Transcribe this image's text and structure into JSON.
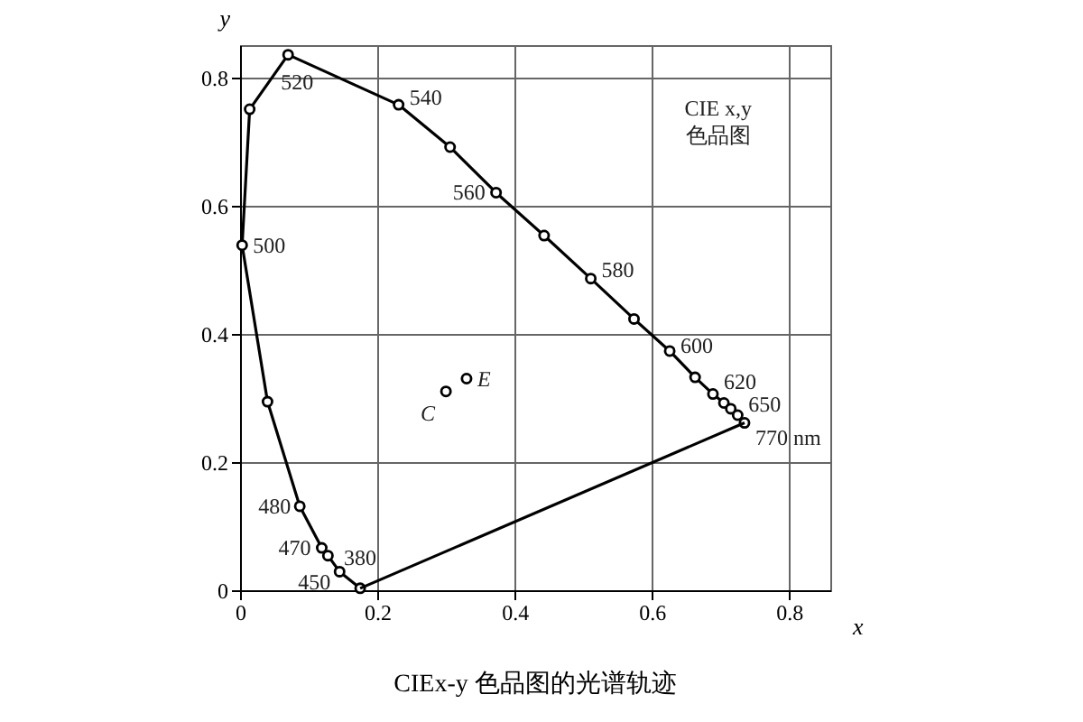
{
  "chart_data": {
    "type": "line",
    "title": "CIEx-y 色品图的光谱轨迹",
    "xlabel": "x",
    "ylabel": "y",
    "xlim": [
      0,
      0.86
    ],
    "ylim": [
      0,
      0.85
    ],
    "xticks": [
      0,
      0.2,
      0.4,
      0.6,
      0.8
    ],
    "yticks": [
      0,
      0.2,
      0.4,
      0.6,
      0.8
    ],
    "grid": true,
    "marker": "circle",
    "line_style": "solid",
    "series": [
      {
        "color": "#000000",
        "x": [
          0.175,
          0.145,
          0.128,
          0.119,
          0.087,
          0.04,
          0.003,
          0.014,
          0.07,
          0.231,
          0.306,
          0.373,
          0.443,
          0.511,
          0.574,
          0.626,
          0.663,
          0.689,
          0.705,
          0.715,
          0.725,
          0.735
        ],
        "values": [
          0.003,
          0.029,
          0.054,
          0.066,
          0.131,
          0.294,
          0.538,
          0.75,
          0.835,
          0.757,
          0.691,
          0.62,
          0.553,
          0.486,
          0.423,
          0.373,
          0.332,
          0.306,
          0.292,
          0.283,
          0.273,
          0.261
        ]
      },
      {
        "marker": "none",
        "color": "#000000",
        "x": [
          0.735,
          0.175
        ],
        "values": [
          0.261,
          0.003
        ]
      },
      {
        "type": "scatter",
        "color": "#000000",
        "x": [
          0.3,
          0.33
        ],
        "values": [
          0.31,
          0.33
        ]
      }
    ],
    "annotations": [
      {
        "text": "520",
        "x": 0.07,
        "y": 0.835
      },
      {
        "text": "540",
        "x": 0.231,
        "y": 0.757
      },
      {
        "text": "560",
        "x": 0.373,
        "y": 0.62
      },
      {
        "text": "580",
        "x": 0.511,
        "y": 0.486
      },
      {
        "text": "600",
        "x": 0.626,
        "y": 0.373
      },
      {
        "text": "620",
        "x": 0.689,
        "y": 0.306
      },
      {
        "text": "650",
        "x": 0.725,
        "y": 0.273
      },
      {
        "text": "770 nm",
        "x": 0.735,
        "y": 0.261
      },
      {
        "text": "500",
        "x": 0.003,
        "y": 0.538
      },
      {
        "text": "480",
        "x": 0.087,
        "y": 0.131
      },
      {
        "text": "470",
        "x": 0.119,
        "y": 0.066
      },
      {
        "text": "450",
        "x": 0.145,
        "y": 0.029
      },
      {
        "text": "380",
        "x": 0.175,
        "y": 0.003
      },
      {
        "text": "C",
        "x": 0.3,
        "y": 0.31
      },
      {
        "text": "E",
        "x": 0.33,
        "y": 0.33
      },
      "CIE x,y\n色品图"
    ]
  }
}
